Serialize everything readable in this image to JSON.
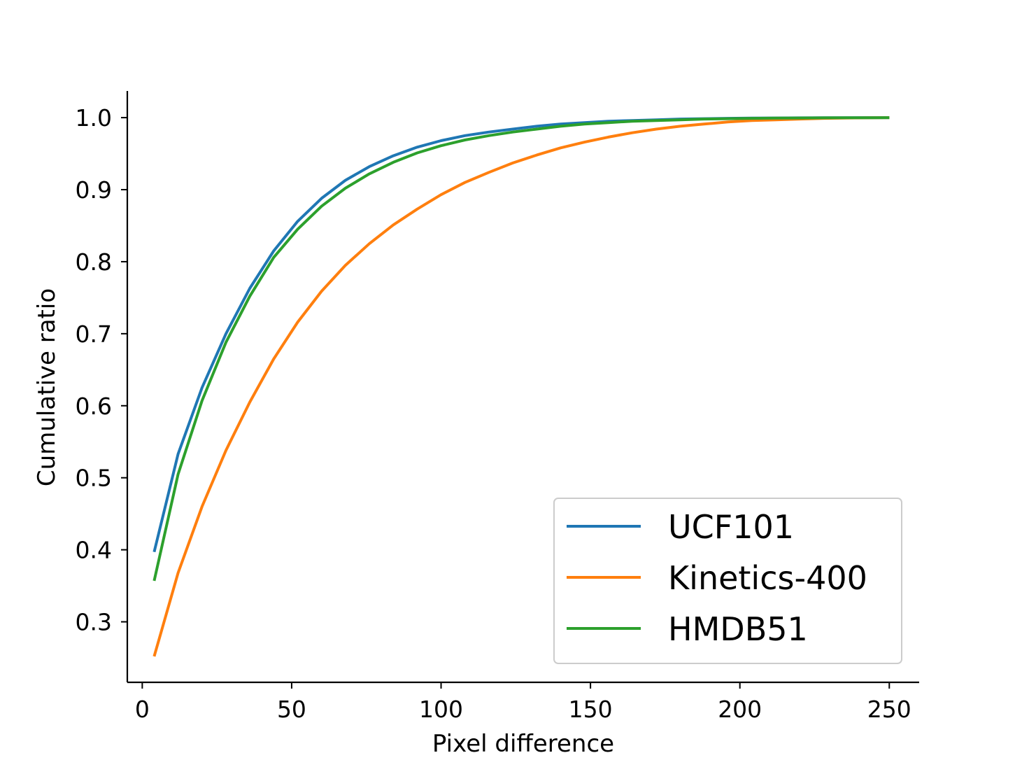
{
  "chart_data": {
    "type": "line",
    "xlabel": "Pixel difference",
    "ylabel": "Cumulative ratio",
    "xlim": [
      -5,
      260
    ],
    "ylim": [
      0.216,
      1.037
    ],
    "xticks": [
      0,
      50,
      100,
      150,
      200,
      250
    ],
    "yticks": [
      0.3,
      0.4,
      0.5,
      0.6,
      0.7,
      0.8,
      0.9,
      1.0
    ],
    "ytick_labels": [
      "0.3",
      "0.4",
      "0.5",
      "0.6",
      "0.7",
      "0.8",
      "0.9",
      "1.0"
    ],
    "grid": false,
    "legend_position": "bottom-right",
    "x": [
      4,
      12,
      20,
      28,
      36,
      44,
      52,
      60,
      68,
      76,
      84,
      92,
      100,
      108,
      116,
      124,
      132,
      140,
      148,
      156,
      164,
      172,
      180,
      188,
      196,
      204,
      212,
      220,
      228,
      236,
      244,
      250
    ],
    "series": [
      {
        "name": "UCF101",
        "color": "#1f77b4",
        "values": [
          0.397,
          0.533,
          0.625,
          0.7,
          0.763,
          0.815,
          0.856,
          0.888,
          0.913,
          0.932,
          0.947,
          0.959,
          0.968,
          0.975,
          0.98,
          0.984,
          0.988,
          0.991,
          0.993,
          0.995,
          0.996,
          0.997,
          0.998,
          0.9985,
          0.999,
          0.9993,
          0.9995,
          0.9997,
          0.9998,
          0.9999,
          1.0,
          1.0
        ]
      },
      {
        "name": "Kinetics-400",
        "color": "#ff7f0e",
        "values": [
          0.252,
          0.368,
          0.46,
          0.538,
          0.605,
          0.665,
          0.716,
          0.759,
          0.795,
          0.825,
          0.851,
          0.873,
          0.893,
          0.91,
          0.924,
          0.937,
          0.948,
          0.958,
          0.966,
          0.973,
          0.979,
          0.984,
          0.988,
          0.991,
          0.994,
          0.996,
          0.997,
          0.998,
          0.999,
          0.9995,
          0.9998,
          1.0
        ]
      },
      {
        "name": "HMDB51",
        "color": "#2ca02c",
        "values": [
          0.357,
          0.505,
          0.607,
          0.688,
          0.752,
          0.806,
          0.845,
          0.877,
          0.902,
          0.922,
          0.938,
          0.951,
          0.961,
          0.969,
          0.975,
          0.98,
          0.984,
          0.988,
          0.991,
          0.993,
          0.995,
          0.996,
          0.997,
          0.998,
          0.9985,
          0.999,
          0.9993,
          0.9995,
          0.9997,
          0.9998,
          0.9999,
          1.0
        ]
      }
    ]
  }
}
